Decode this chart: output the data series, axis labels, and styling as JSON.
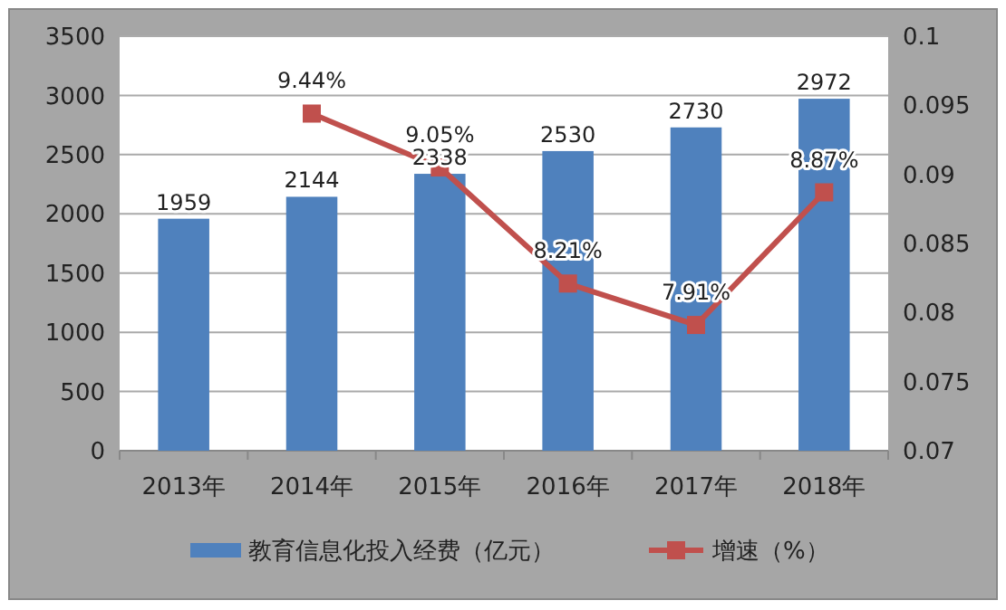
{
  "chart_data": {
    "type": "bar",
    "categories": [
      "2013年",
      "2014年",
      "2015年",
      "2016年",
      "2017年",
      "2018年"
    ],
    "series": [
      {
        "name": "教育信息化投入经费（亿元）",
        "color": "#4f81bd",
        "values": [
          1959,
          2144,
          2338,
          2530,
          2730,
          2972
        ],
        "value_labels": [
          "1959",
          "2144",
          "2338",
          "2530",
          "2730",
          "2972"
        ]
      },
      {
        "name": "增速（%）",
        "type": "line",
        "axis": "y2",
        "color": "#c0504d",
        "marker": "square",
        "values": [
          null,
          0.0944,
          0.0905,
          0.0821,
          0.0791,
          0.0887
        ],
        "value_labels": [
          null,
          "9.44%",
          "9.05%",
          "8.21%",
          "7.91%",
          "8.87%"
        ]
      }
    ],
    "ylim": [
      0,
      3500
    ],
    "yticks": [
      0,
      500,
      1000,
      1500,
      2000,
      2500,
      3000,
      3500
    ],
    "y2lim": [
      0.07,
      0.1
    ],
    "y2ticks": [
      0.07,
      0.075,
      0.08,
      0.085,
      0.09,
      0.095,
      0.1
    ],
    "grid": "y",
    "legend": "bottom"
  }
}
